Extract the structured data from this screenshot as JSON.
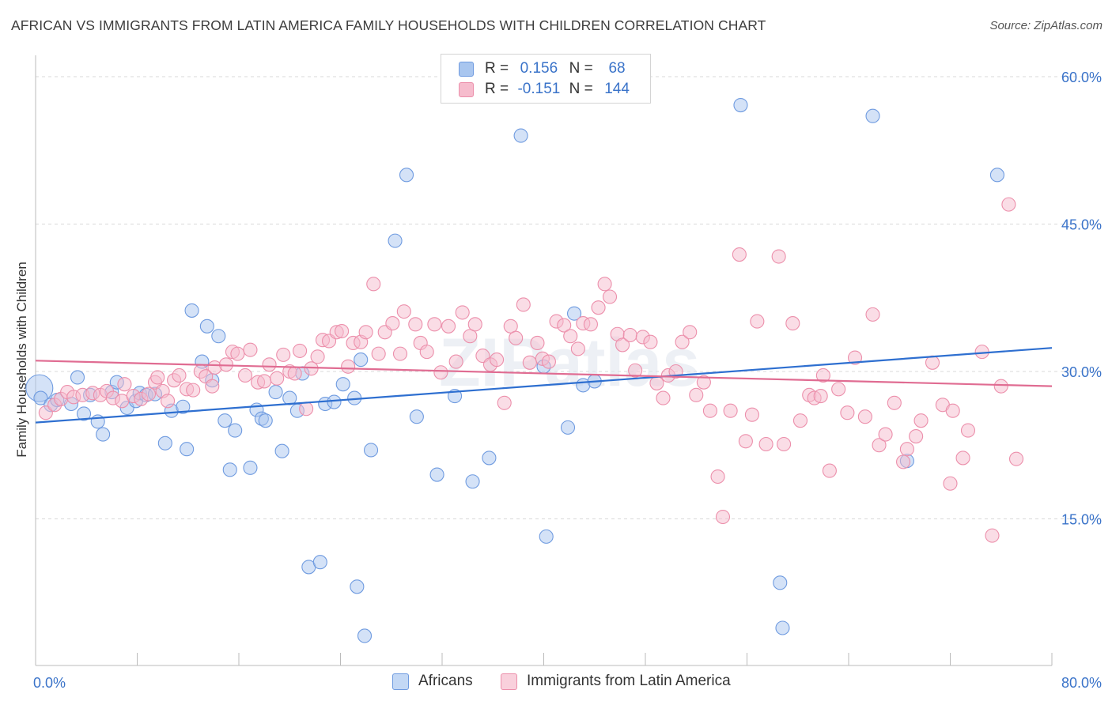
{
  "title": "AFRICAN VS IMMIGRANTS FROM LATIN AMERICA FAMILY HOUSEHOLDS WITH CHILDREN CORRELATION CHART",
  "source": "Source: ZipAtlas.com",
  "watermark": "ZIPatlas",
  "legend": {
    "rows": [
      {
        "r_label": "R =",
        "r_value": "0.156",
        "n_label": "N =",
        "n_value": "68",
        "color": "#a9c6ef",
        "stroke": "#6f9be0"
      },
      {
        "r_label": "R =",
        "r_value": "-0.151",
        "n_label": "N =",
        "n_value": "144",
        "color": "#f6bccd",
        "stroke": "#ec8fab"
      }
    ]
  },
  "bottom_legend": [
    {
      "label": "Africans",
      "color": "#a9c6ef",
      "stroke": "#6f9be0"
    },
    {
      "label": "Immigrants from Latin America",
      "color": "#f6bccd",
      "stroke": "#ec8fab"
    }
  ],
  "chart_data": {
    "type": "scatter",
    "ylabel": "Family Households with Children",
    "xlabel": "",
    "xlim": [
      0,
      80
    ],
    "ylim": [
      0,
      60
    ],
    "x_tick_labels": [
      "0.0%",
      "80.0%"
    ],
    "y_tick_labels": [
      "15.0%",
      "30.0%",
      "45.0%",
      "60.0%"
    ],
    "y_ticks": [
      15,
      30,
      45,
      60
    ],
    "grid": "horizontal dashed",
    "series": [
      {
        "name": "Africans",
        "color": "#6f9be0",
        "fill": "#a9c6ef",
        "trend": {
          "x": [
            0,
            80
          ],
          "y": [
            24.8,
            32.4
          ]
        },
        "points": [
          [
            0.3,
            28.3
          ],
          [
            0.4,
            27.3
          ],
          [
            1.2,
            26.6
          ],
          [
            1.7,
            27.1
          ],
          [
            2.8,
            26.7
          ],
          [
            3.3,
            29.4
          ],
          [
            3.8,
            25.7
          ],
          [
            4.3,
            27.6
          ],
          [
            4.9,
            24.9
          ],
          [
            5.3,
            23.6
          ],
          [
            6.0,
            27.9
          ],
          [
            6.4,
            28.9
          ],
          [
            7.2,
            26.3
          ],
          [
            7.9,
            27.0
          ],
          [
            8.2,
            27.8
          ],
          [
            8.7,
            27.6
          ],
          [
            9.4,
            27.7
          ],
          [
            10.2,
            22.7
          ],
          [
            10.7,
            26.0
          ],
          [
            11.6,
            26.4
          ],
          [
            11.9,
            22.1
          ],
          [
            12.3,
            36.2
          ],
          [
            13.1,
            31.0
          ],
          [
            13.5,
            34.6
          ],
          [
            13.9,
            29.1
          ],
          [
            14.4,
            33.6
          ],
          [
            14.9,
            25.0
          ],
          [
            15.3,
            20.0
          ],
          [
            15.7,
            24.0
          ],
          [
            16.9,
            20.2
          ],
          [
            17.4,
            26.1
          ],
          [
            17.8,
            25.2
          ],
          [
            18.1,
            25.0
          ],
          [
            18.9,
            27.9
          ],
          [
            19.4,
            21.9
          ],
          [
            20.0,
            27.3
          ],
          [
            20.6,
            26.0
          ],
          [
            21.0,
            29.8
          ],
          [
            21.5,
            10.1
          ],
          [
            22.4,
            10.6
          ],
          [
            22.8,
            26.7
          ],
          [
            23.5,
            26.9
          ],
          [
            24.2,
            28.7
          ],
          [
            25.1,
            27.3
          ],
          [
            25.3,
            8.1
          ],
          [
            25.6,
            31.2
          ],
          [
            25.9,
            3.1
          ],
          [
            26.4,
            22.0
          ],
          [
            28.3,
            43.3
          ],
          [
            29.2,
            50.0
          ],
          [
            30.0,
            25.4
          ],
          [
            31.6,
            19.5
          ],
          [
            34.4,
            18.8
          ],
          [
            35.7,
            21.2
          ],
          [
            38.2,
            54.0
          ],
          [
            40.2,
            13.2
          ],
          [
            41.9,
            24.3
          ],
          [
            42.4,
            35.9
          ],
          [
            43.1,
            28.6
          ],
          [
            55.5,
            57.1
          ],
          [
            58.6,
            8.5
          ],
          [
            58.8,
            3.9
          ],
          [
            65.9,
            56.0
          ],
          [
            68.6,
            20.9
          ],
          [
            75.7,
            50.0
          ],
          [
            40.0,
            30.5
          ],
          [
            33.0,
            27.5
          ],
          [
            44.0,
            29.0
          ]
        ]
      },
      {
        "name": "Immigrants from Latin America",
        "color": "#ec8fab",
        "fill": "#f6bccd",
        "trend": {
          "x": [
            0,
            80
          ],
          "y": [
            31.1,
            28.5
          ]
        },
        "points": [
          [
            0.8,
            25.8
          ],
          [
            1.5,
            26.6
          ],
          [
            2.0,
            27.2
          ],
          [
            2.5,
            27.9
          ],
          [
            3.0,
            27.4
          ],
          [
            3.7,
            27.6
          ],
          [
            4.5,
            27.8
          ],
          [
            5.1,
            27.6
          ],
          [
            5.6,
            28.0
          ],
          [
            6.1,
            27.3
          ],
          [
            6.8,
            27.0
          ],
          [
            7.0,
            28.7
          ],
          [
            7.7,
            27.5
          ],
          [
            8.3,
            27.2
          ],
          [
            8.9,
            27.7
          ],
          [
            9.4,
            28.9
          ],
          [
            9.6,
            29.4
          ],
          [
            10.0,
            28.0
          ],
          [
            10.4,
            27.0
          ],
          [
            10.9,
            29.1
          ],
          [
            11.3,
            29.6
          ],
          [
            11.9,
            28.2
          ],
          [
            12.4,
            28.1
          ],
          [
            13.0,
            30.0
          ],
          [
            13.4,
            29.5
          ],
          [
            13.9,
            28.5
          ],
          [
            14.1,
            30.4
          ],
          [
            15.0,
            30.7
          ],
          [
            15.5,
            32.0
          ],
          [
            15.9,
            31.8
          ],
          [
            16.5,
            29.6
          ],
          [
            16.9,
            32.2
          ],
          [
            17.5,
            28.9
          ],
          [
            18.0,
            29.0
          ],
          [
            18.4,
            30.7
          ],
          [
            19.0,
            29.3
          ],
          [
            19.5,
            31.7
          ],
          [
            20.0,
            30.0
          ],
          [
            20.4,
            29.8
          ],
          [
            20.8,
            32.1
          ],
          [
            21.3,
            26.2
          ],
          [
            21.7,
            30.3
          ],
          [
            22.2,
            31.5
          ],
          [
            22.6,
            33.2
          ],
          [
            23.1,
            33.1
          ],
          [
            23.7,
            34.0
          ],
          [
            24.1,
            34.1
          ],
          [
            24.6,
            30.5
          ],
          [
            25.0,
            32.9
          ],
          [
            25.6,
            33.0
          ],
          [
            26.0,
            34.0
          ],
          [
            26.6,
            38.9
          ],
          [
            27.0,
            31.8
          ],
          [
            27.5,
            34.0
          ],
          [
            28.1,
            34.9
          ],
          [
            28.7,
            31.8
          ],
          [
            29.0,
            36.1
          ],
          [
            29.9,
            34.8
          ],
          [
            30.3,
            32.9
          ],
          [
            30.8,
            32.0
          ],
          [
            31.4,
            34.8
          ],
          [
            31.9,
            29.9
          ],
          [
            32.5,
            34.6
          ],
          [
            33.1,
            31.0
          ],
          [
            33.6,
            36.0
          ],
          [
            34.2,
            33.6
          ],
          [
            34.6,
            34.8
          ],
          [
            35.2,
            31.6
          ],
          [
            35.8,
            30.7
          ],
          [
            36.3,
            31.2
          ],
          [
            36.9,
            26.8
          ],
          [
            37.4,
            34.6
          ],
          [
            37.8,
            33.4
          ],
          [
            38.4,
            36.8
          ],
          [
            38.9,
            30.9
          ],
          [
            39.5,
            32.9
          ],
          [
            39.9,
            31.3
          ],
          [
            40.4,
            31.0
          ],
          [
            41.0,
            35.1
          ],
          [
            41.6,
            34.7
          ],
          [
            42.1,
            33.6
          ],
          [
            42.7,
            32.3
          ],
          [
            43.1,
            34.9
          ],
          [
            43.7,
            34.8
          ],
          [
            44.3,
            36.5
          ],
          [
            44.8,
            38.9
          ],
          [
            45.2,
            37.6
          ],
          [
            45.8,
            33.8
          ],
          [
            46.2,
            32.7
          ],
          [
            46.8,
            33.7
          ],
          [
            47.2,
            30.1
          ],
          [
            47.8,
            33.5
          ],
          [
            48.4,
            33.0
          ],
          [
            48.9,
            28.8
          ],
          [
            49.4,
            27.3
          ],
          [
            49.8,
            29.6
          ],
          [
            50.4,
            30.0
          ],
          [
            50.9,
            33.0
          ],
          [
            51.5,
            34.0
          ],
          [
            52.0,
            27.6
          ],
          [
            52.6,
            28.9
          ],
          [
            53.1,
            26.0
          ],
          [
            53.7,
            19.3
          ],
          [
            54.1,
            15.2
          ],
          [
            54.7,
            26.0
          ],
          [
            55.4,
            41.9
          ],
          [
            55.9,
            22.9
          ],
          [
            56.4,
            25.6
          ],
          [
            56.8,
            35.1
          ],
          [
            57.5,
            22.6
          ],
          [
            58.5,
            41.7
          ],
          [
            58.9,
            22.6
          ],
          [
            59.6,
            34.9
          ],
          [
            60.2,
            25.0
          ],
          [
            60.9,
            27.6
          ],
          [
            61.3,
            27.3
          ],
          [
            62.0,
            29.6
          ],
          [
            62.5,
            19.9
          ],
          [
            63.2,
            28.2
          ],
          [
            63.9,
            25.8
          ],
          [
            64.5,
            31.4
          ],
          [
            65.3,
            25.4
          ],
          [
            65.9,
            35.8
          ],
          [
            66.4,
            22.5
          ],
          [
            66.9,
            23.6
          ],
          [
            67.6,
            26.8
          ],
          [
            68.3,
            20.8
          ],
          [
            68.6,
            22.1
          ],
          [
            69.3,
            23.4
          ],
          [
            69.7,
            25.0
          ],
          [
            70.6,
            30.9
          ],
          [
            71.4,
            26.6
          ],
          [
            72.0,
            18.6
          ],
          [
            72.2,
            26.0
          ],
          [
            73.0,
            21.2
          ],
          [
            73.4,
            24.0
          ],
          [
            75.3,
            13.3
          ],
          [
            76.6,
            47.0
          ],
          [
            77.2,
            21.1
          ],
          [
            76.0,
            28.5
          ],
          [
            74.5,
            32.0
          ],
          [
            61.8,
            27.5
          ]
        ]
      }
    ]
  }
}
